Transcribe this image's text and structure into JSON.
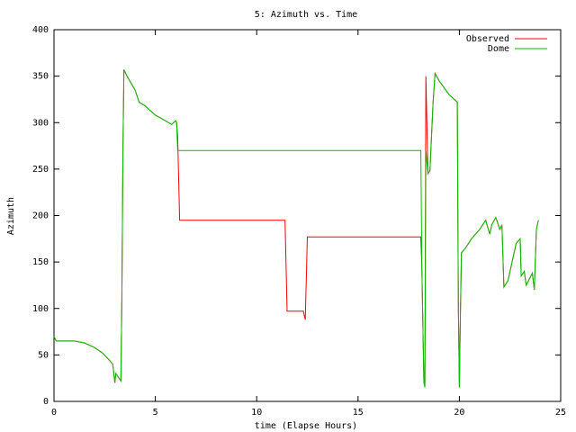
{
  "chart_data": {
    "type": "line",
    "title": "5: Azimuth vs. Time",
    "x_label": "time (Elapse Hours)",
    "y_label": "Azimuth",
    "x": [
      0,
      0.1,
      1,
      1.5,
      1.8,
      2,
      2.2,
      2.4,
      2.7,
      2.9,
      3.0,
      3.05,
      3.3,
      3.35,
      3.4,
      3.45,
      3.6,
      4,
      4.2,
      4.5,
      5,
      5.5,
      5.8,
      6,
      6.05,
      6.1,
      6.2,
      11.4,
      11.5,
      12.3,
      12.4,
      12.5,
      18.1,
      18.15,
      18.2,
      18.25,
      18.3,
      18.35,
      18.45,
      18.55,
      18.7,
      18.8,
      19,
      19.5,
      19.9,
      19.95,
      20.0,
      20.05,
      20.1,
      20.3,
      20.6,
      21,
      21.3,
      21.5,
      21.6,
      21.8,
      22,
      22.1,
      22.2,
      22.4,
      22.6,
      22.8,
      23,
      23.05,
      23.2,
      23.3,
      23.6,
      23.7,
      23.8,
      23.9
    ],
    "series": [
      {
        "name": "Observed",
        "color": "#ff0000",
        "values": [
          70,
          65,
          65,
          63,
          60,
          58,
          55,
          52,
          45,
          40,
          20,
          30,
          22,
          108,
          270,
          357,
          350,
          335,
          322,
          318,
          308,
          302,
          298,
          302,
          300,
          285,
          195,
          195,
          97,
          97,
          88,
          177,
          177,
          145,
          80,
          20,
          20,
          350,
          245,
          248,
          320,
          353,
          345,
          330,
          322,
          100,
          15,
          90,
          160,
          165,
          175,
          185,
          195,
          180,
          190,
          198,
          185,
          190,
          123,
          130,
          150,
          170,
          175,
          135,
          140,
          125,
          138,
          120,
          185,
          195
        ]
      },
      {
        "name": "Dome",
        "color": "#00c000",
        "values": [
          70,
          65,
          65,
          63,
          60,
          58,
          55,
          52,
          45,
          40,
          20,
          30,
          22,
          108,
          270,
          357,
          350,
          335,
          322,
          318,
          308,
          302,
          298,
          302,
          300,
          270,
          270,
          270,
          270,
          270,
          270,
          270,
          270,
          145,
          80,
          20,
          15,
          270,
          245,
          248,
          320,
          353,
          345,
          330,
          322,
          100,
          15,
          90,
          160,
          165,
          175,
          185,
          195,
          180,
          190,
          198,
          185,
          190,
          123,
          130,
          150,
          170,
          175,
          135,
          140,
          125,
          138,
          120,
          185,
          195
        ]
      }
    ],
    "xlim": [
      0,
      25
    ],
    "xticks": [
      0,
      5,
      10,
      15,
      20,
      25
    ],
    "ylim": [
      0,
      400
    ],
    "yticks": [
      0,
      50,
      100,
      150,
      200,
      250,
      300,
      350,
      400
    ],
    "legend": "top-right"
  }
}
